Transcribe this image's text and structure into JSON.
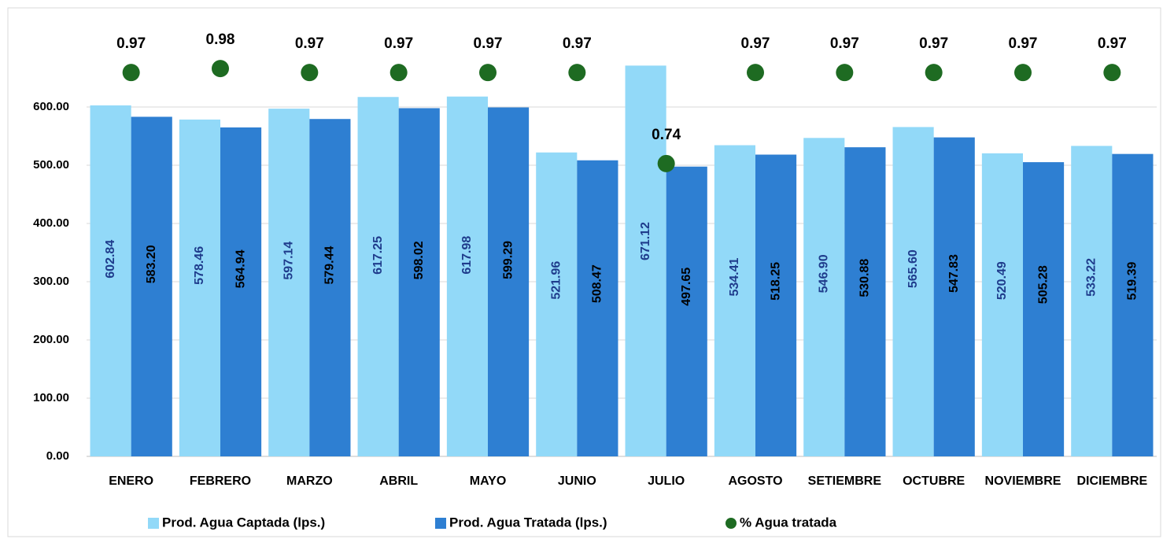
{
  "chart_data": {
    "type": "bar",
    "categories": [
      "ENERO",
      "FEBRERO",
      "MARZO",
      "ABRIL",
      "MAYO",
      "JUNIO",
      "JULIO",
      "AGOSTO",
      "SETIEMBRE",
      "OCTUBRE",
      "NOVIEMBRE",
      "DICIEMBRE"
    ],
    "series": [
      {
        "name": "Prod. Agua  Captada (lps.)",
        "type": "bar",
        "color": "#92d9f8",
        "label_color": "#1f3c8c",
        "values": [
          602.84,
          578.46,
          597.14,
          617.25,
          617.98,
          521.96,
          671.12,
          534.41,
          546.9,
          565.6,
          520.49,
          533.22
        ],
        "value_labels": [
          "602.84",
          "578.46",
          "597.14",
          "617.25",
          "617.98",
          "521.96",
          "671.12",
          "534.41",
          "546.90",
          "565.60",
          "520.49",
          "533.22"
        ]
      },
      {
        "name": "Prod. Agua Tratada (lps.)",
        "type": "bar",
        "color": "#2e7fd2",
        "label_color": "#000000",
        "values": [
          583.2,
          564.94,
          579.44,
          598.02,
          599.29,
          508.47,
          497.65,
          518.25,
          530.88,
          547.83,
          505.28,
          519.39
        ],
        "value_labels": [
          "583.20",
          "564.94",
          "579.44",
          "598.02",
          "599.29",
          "508.47",
          "497.65",
          "518.25",
          "530.88",
          "547.83",
          "505.28",
          "519.39"
        ]
      },
      {
        "name": "% Agua tratada",
        "type": "scatter",
        "axis": "y2",
        "color": "#1e6b22",
        "values": [
          0.97,
          0.98,
          0.97,
          0.97,
          0.97,
          0.97,
          0.74,
          0.97,
          0.97,
          0.97,
          0.97,
          0.97
        ]
      }
    ],
    "ylim": [
      0,
      700
    ],
    "yticks": [
      {
        "value": 0,
        "label": "0.00"
      },
      {
        "value": 100,
        "label": "100.00"
      },
      {
        "value": 200,
        "label": "200.00"
      },
      {
        "value": 300,
        "label": "300.00"
      },
      {
        "value": 400,
        "label": "400.00"
      },
      {
        "value": 500,
        "label": "500.00"
      },
      {
        "value": 600,
        "label": "600.00"
      }
    ],
    "y2lim": [
      0,
      1.03
    ],
    "grid": true,
    "legend": "bottom"
  }
}
